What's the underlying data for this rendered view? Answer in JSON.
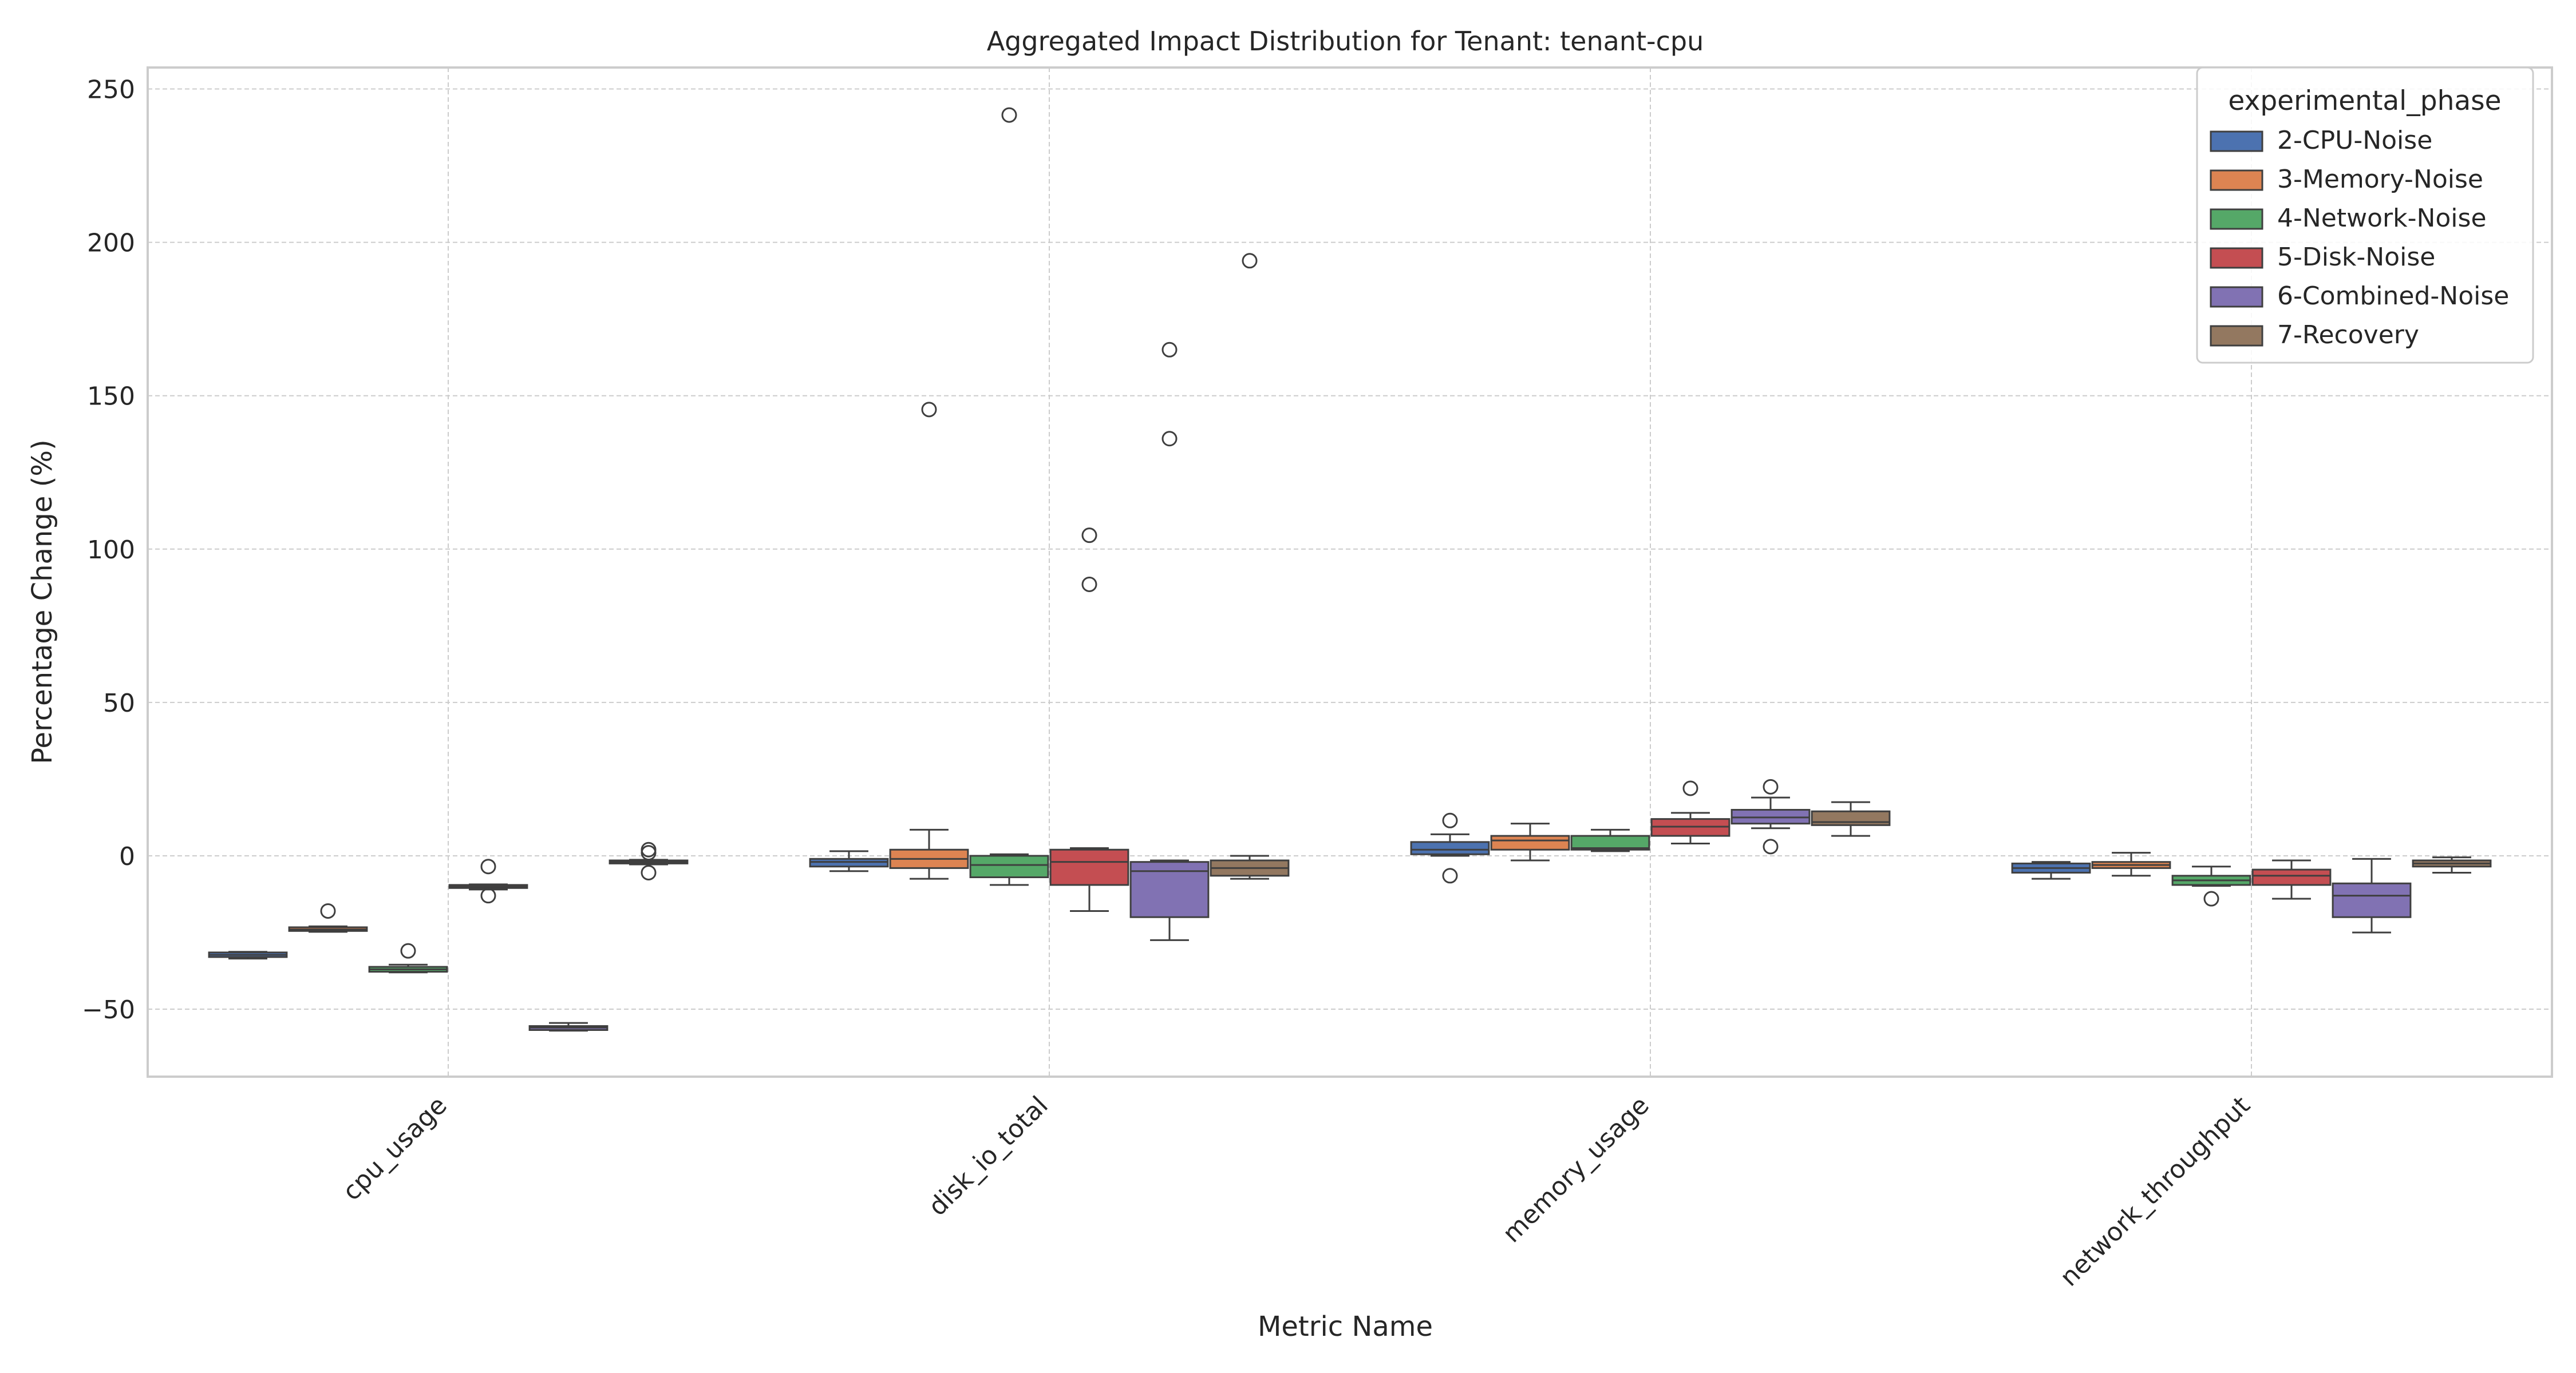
{
  "chart_data": {
    "type": "box",
    "title": "Aggregated Impact Distribution for Tenant: tenant-cpu",
    "xlabel": "Metric Name",
    "ylabel": "Percentage Change (%)",
    "ylim": [
      -72,
      257
    ],
    "yticks": [
      -50,
      0,
      50,
      100,
      150,
      200,
      250
    ],
    "ytick_labels": [
      "−50",
      "0",
      "50",
      "100",
      "150",
      "200",
      "250"
    ],
    "categories": [
      "cpu_usage",
      "disk_io_total",
      "memory_usage",
      "network_throughput"
    ],
    "grid": true,
    "legend": {
      "title": "experimental_phase",
      "position": "top-right"
    },
    "series": [
      {
        "name": "2-CPU-Noise",
        "color": "#4c72b0",
        "boxes": [
          {
            "q1": -33,
            "median": -32.3,
            "q3": -31.5,
            "whisker_low": -33.5,
            "whisker_high": -31.3,
            "outliers": []
          },
          {
            "q1": -3.5,
            "median": -2,
            "q3": -1,
            "whisker_low": -5,
            "whisker_high": 1.5,
            "outliers": []
          },
          {
            "q1": 0.5,
            "median": 2,
            "q3": 4.5,
            "whisker_low": 0,
            "whisker_high": 7,
            "outliers": [
              11.5,
              -6.5
            ]
          },
          {
            "q1": -5.5,
            "median": -4,
            "q3": -2.5,
            "whisker_low": -7.5,
            "whisker_high": -2,
            "outliers": []
          }
        ]
      },
      {
        "name": "3-Memory-Noise",
        "color": "#dd8452",
        "boxes": [
          {
            "q1": -24.5,
            "median": -24,
            "q3": -23.3,
            "whisker_low": -24.8,
            "whisker_high": -23,
            "outliers": [
              -18
            ]
          },
          {
            "q1": -4,
            "median": -1,
            "q3": 2,
            "whisker_low": -7.5,
            "whisker_high": 8.5,
            "outliers": [
              145.5
            ]
          },
          {
            "q1": 2,
            "median": 5,
            "q3": 6.5,
            "whisker_low": -1.5,
            "whisker_high": 10.5,
            "outliers": []
          },
          {
            "q1": -4,
            "median": -3,
            "q3": -2,
            "whisker_low": -6.5,
            "whisker_high": 1,
            "outliers": []
          }
        ]
      },
      {
        "name": "4-Network-Noise",
        "color": "#55a868",
        "boxes": [
          {
            "q1": -37.8,
            "median": -37,
            "q3": -36.2,
            "whisker_low": -38,
            "whisker_high": -35.5,
            "outliers": [
              -31
            ]
          },
          {
            "q1": -7,
            "median": -3,
            "q3": 0,
            "whisker_low": -9.5,
            "whisker_high": 0.5,
            "outliers": [
              241.5
            ]
          },
          {
            "q1": 2,
            "median": 2.5,
            "q3": 6.5,
            "whisker_low": 1.5,
            "whisker_high": 8.5,
            "outliers": []
          },
          {
            "q1": -9.5,
            "median": -8,
            "q3": -6.5,
            "whisker_low": -9.8,
            "whisker_high": -3.5,
            "outliers": [
              -14
            ]
          }
        ]
      },
      {
        "name": "5-Disk-Noise",
        "color": "#c44e52",
        "boxes": [
          {
            "q1": -10.5,
            "median": -10,
            "q3": -9.5,
            "whisker_low": -11,
            "whisker_high": -9.3,
            "outliers": [
              -3.5,
              -13
            ]
          },
          {
            "q1": -9.5,
            "median": -2,
            "q3": 2,
            "whisker_low": -18,
            "whisker_high": 2.5,
            "outliers": [
              104.5,
              88.5
            ]
          },
          {
            "q1": 6.5,
            "median": 9.5,
            "q3": 12,
            "whisker_low": 4,
            "whisker_high": 14,
            "outliers": [
              22
            ]
          },
          {
            "q1": -9.5,
            "median": -6.5,
            "q3": -4.5,
            "whisker_low": -14,
            "whisker_high": -1.5,
            "outliers": []
          }
        ]
      },
      {
        "name": "6-Combined-Noise",
        "color": "#8172b3",
        "boxes": [
          {
            "q1": -56.8,
            "median": -56,
            "q3": -55.5,
            "whisker_low": -57,
            "whisker_high": -54.5,
            "outliers": []
          },
          {
            "q1": -20,
            "median": -5,
            "q3": -2,
            "whisker_low": -27.5,
            "whisker_high": -1.5,
            "outliers": [
              165,
              136
            ]
          },
          {
            "q1": 10.5,
            "median": 12.5,
            "q3": 15,
            "whisker_low": 9,
            "whisker_high": 19,
            "outliers": [
              22.5,
              3
            ]
          },
          {
            "q1": -20,
            "median": -13,
            "q3": -9,
            "whisker_low": -25,
            "whisker_high": -1,
            "outliers": []
          }
        ]
      },
      {
        "name": "7-Recovery",
        "color": "#937860",
        "boxes": [
          {
            "q1": -2.5,
            "median": -2,
            "q3": -1.5,
            "whisker_low": -2.8,
            "whisker_high": -1.3,
            "outliers": [
              2,
              1,
              -5.5
            ]
          },
          {
            "q1": -6.5,
            "median": -4,
            "q3": -1.5,
            "whisker_low": -7.5,
            "whisker_high": 0,
            "outliers": [
              194
            ]
          },
          {
            "q1": 10,
            "median": 11,
            "q3": 14.5,
            "whisker_low": 6.5,
            "whisker_high": 17.5,
            "outliers": []
          },
          {
            "q1": -3.5,
            "median": -2.5,
            "q3": -1.5,
            "whisker_low": -5.5,
            "whisker_high": -0.5,
            "outliers": []
          }
        ]
      }
    ]
  }
}
